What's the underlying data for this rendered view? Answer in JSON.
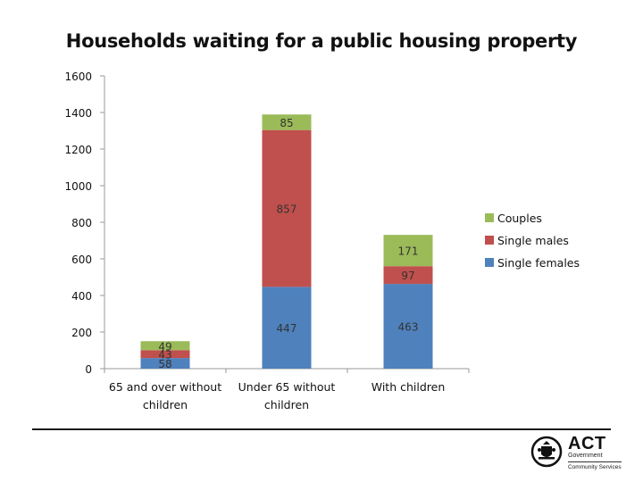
{
  "chart_data": {
    "type": "bar",
    "stacked": true,
    "title": "Households waiting for a public housing property",
    "categories": [
      [
        "65 and over without",
        "children"
      ],
      [
        "Under 65 without",
        "children"
      ],
      [
        "With children"
      ]
    ],
    "series": [
      {
        "name": "Single females",
        "color": "#4f81bd",
        "values": [
          58,
          447,
          463
        ]
      },
      {
        "name": "Single males",
        "color": "#c0504d",
        "values": [
          43,
          857,
          97
        ]
      },
      {
        "name": "Couples",
        "color": "#9bbb59",
        "values": [
          49,
          85,
          171
        ]
      }
    ],
    "ylim": [
      0,
      1600
    ],
    "yticks": [
      0,
      200,
      400,
      600,
      800,
      1000,
      1200,
      1400,
      1600
    ],
    "grid": false,
    "legend": "right",
    "xlabel": "",
    "ylabel": ""
  },
  "logo": {
    "org": "ACT",
    "sub1": "Government",
    "sub2": "Community Services"
  }
}
